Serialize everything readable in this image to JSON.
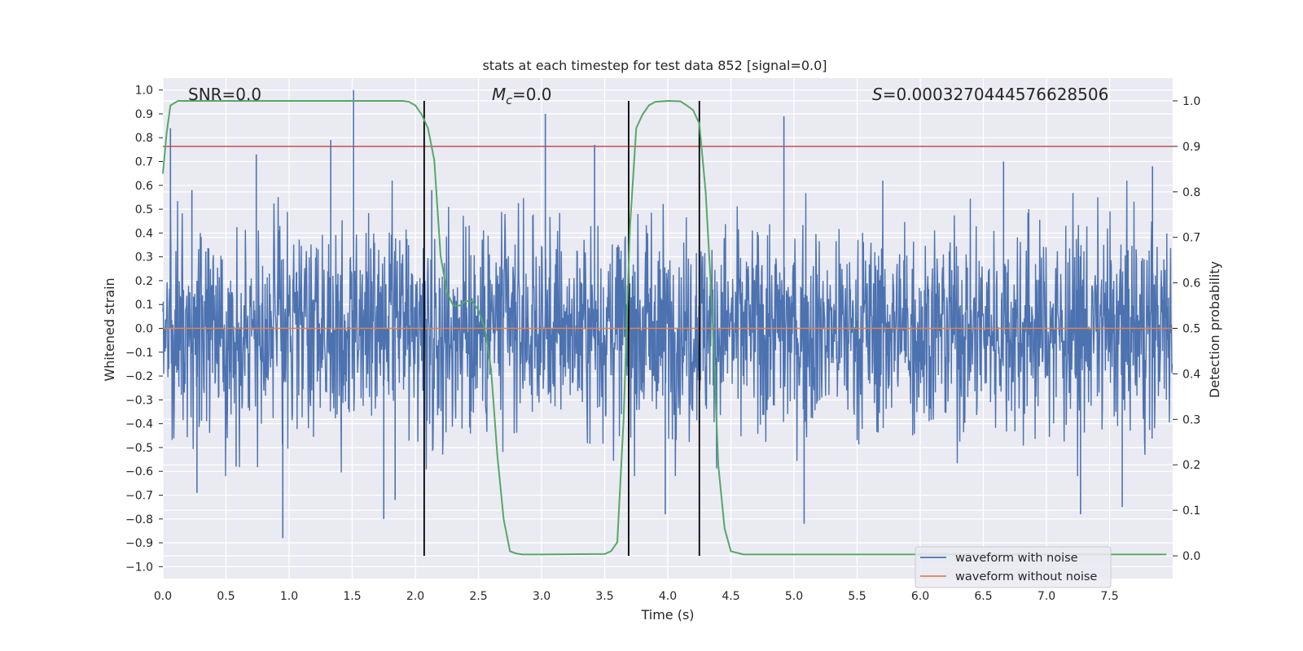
{
  "chart_data": {
    "type": "line",
    "title": "stats at each timestep for test data 852 [signal=0.0]",
    "xlabel": "Time (s)",
    "ylabel": "Whitened strain",
    "y2label": "Detection probability",
    "xlim": [
      0.0,
      8.0
    ],
    "ylim": [
      -1.05,
      1.05
    ],
    "y2lim": [
      -0.05,
      1.05
    ],
    "xticks": [
      "0.0",
      "0.5",
      "1.0",
      "1.5",
      "2.0",
      "2.5",
      "3.0",
      "3.5",
      "4.0",
      "4.5",
      "5.0",
      "5.5",
      "6.0",
      "6.5",
      "7.0",
      "7.5"
    ],
    "yticks": [
      "1.0",
      "0.9",
      "0.8",
      "0.7",
      "0.6",
      "0.5",
      "0.4",
      "0.3",
      "0.2",
      "0.1",
      "0.0",
      "−0.1",
      "−0.2",
      "−0.3",
      "−0.4",
      "−0.5",
      "−0.6",
      "−0.7",
      "−0.8",
      "−0.9",
      "−1.0"
    ],
    "y2ticks": [
      "1.0",
      "0.9",
      "0.8",
      "0.7",
      "0.6",
      "0.5",
      "0.4",
      "0.3",
      "0.2",
      "0.1",
      "0.0"
    ],
    "grid": true,
    "legend_position": "lower-right",
    "annotations": {
      "snr": "SNR=0.0",
      "mc_symbol": "M",
      "mc_sub": "c",
      "mc_value": "=0.0",
      "s_symbol": "S",
      "s_value": "=0.0003270444576628506"
    },
    "series": [
      {
        "name": "waveform with noise",
        "color": "#4c72b0",
        "kind": "noise",
        "envelope_typical": 0.45,
        "spikes": [
          [
            0.06,
            0.84
          ],
          [
            0.23,
            0.58
          ],
          [
            0.27,
            -0.69
          ],
          [
            0.58,
            -0.58
          ],
          [
            0.74,
            0.73
          ],
          [
            0.95,
            -0.88
          ],
          [
            1.33,
            0.79
          ],
          [
            1.51,
            1.0
          ],
          [
            1.75,
            -0.8
          ],
          [
            1.84,
            -0.72
          ],
          [
            2.13,
            0.58
          ],
          [
            3.03,
            0.9
          ],
          [
            3.42,
            0.77
          ],
          [
            3.98,
            -0.78
          ],
          [
            4.92,
            0.89
          ],
          [
            5.08,
            -0.82
          ],
          [
            6.66,
            0.7
          ],
          [
            7.27,
            -0.78
          ],
          [
            7.6,
            -0.75
          ],
          [
            7.84,
            0.68
          ]
        ]
      },
      {
        "name": "waveform without noise",
        "color": "#dd8452",
        "kind": "flat",
        "value": 0.0
      },
      {
        "name": "Detection probability",
        "color": "#55a868",
        "axis": "right",
        "x": [
          0.0,
          0.03,
          0.06,
          0.12,
          0.3,
          0.6,
          1.0,
          1.5,
          1.8,
          1.9,
          1.95,
          2.0,
          2.05,
          2.1,
          2.15,
          2.2,
          2.25,
          2.3,
          2.35,
          2.4,
          2.45,
          2.5,
          2.55,
          2.6,
          2.65,
          2.7,
          2.75,
          2.8,
          2.85,
          2.9,
          3.0,
          3.5,
          3.55,
          3.6,
          3.65,
          3.7,
          3.75,
          3.8,
          3.85,
          3.9,
          4.0,
          4.1,
          4.15,
          4.2,
          4.25,
          4.3,
          4.35,
          4.4,
          4.45,
          4.5,
          4.6,
          5.0,
          6.0,
          7.0,
          7.95
        ],
        "y": [
          0.84,
          0.93,
          0.99,
          1.0,
          1.0,
          1.0,
          1.0,
          1.0,
          1.0,
          1.0,
          0.998,
          0.99,
          0.97,
          0.94,
          0.87,
          0.66,
          0.58,
          0.55,
          0.55,
          0.56,
          0.56,
          0.54,
          0.5,
          0.41,
          0.22,
          0.08,
          0.01,
          0.005,
          0.003,
          0.003,
          0.003,
          0.004,
          0.01,
          0.03,
          0.3,
          0.72,
          0.94,
          0.97,
          0.99,
          0.998,
          1.0,
          0.999,
          0.99,
          0.98,
          0.95,
          0.8,
          0.55,
          0.2,
          0.06,
          0.01,
          0.003,
          0.003,
          0.003,
          0.003,
          0.003
        ]
      }
    ],
    "hlines": [
      {
        "value": 0.9,
        "axis": "right",
        "color": "#c44e52"
      }
    ],
    "vlines": [
      {
        "x": 2.07,
        "color": "#000000"
      },
      {
        "x": 3.69,
        "color": "#000000"
      },
      {
        "x": 4.25,
        "color": "#000000"
      }
    ]
  }
}
